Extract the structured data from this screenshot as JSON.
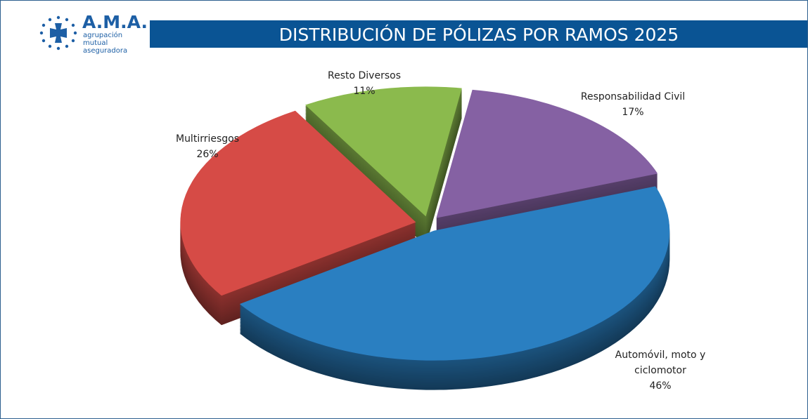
{
  "logo": {
    "name": "A.M.A.",
    "tagline": "agrupación mutual aseguradora"
  },
  "chart_data": {
    "type": "pie",
    "title": "DISTRIBUCIÓN DE PÓLIZAS POR RAMOS 2025",
    "categories": [
      "Automóvil, moto y ciclomotor",
      "Multirriesgos",
      "Resto Diversos",
      "Responsabilidad Civil"
    ],
    "values": [
      46,
      26,
      11,
      17
    ],
    "value_labels": [
      "46%",
      "26%",
      "11%",
      "17%"
    ],
    "colors": [
      "#2a7fc1",
      "#d64b46",
      "#8bba4d",
      "#8561a3"
    ]
  }
}
